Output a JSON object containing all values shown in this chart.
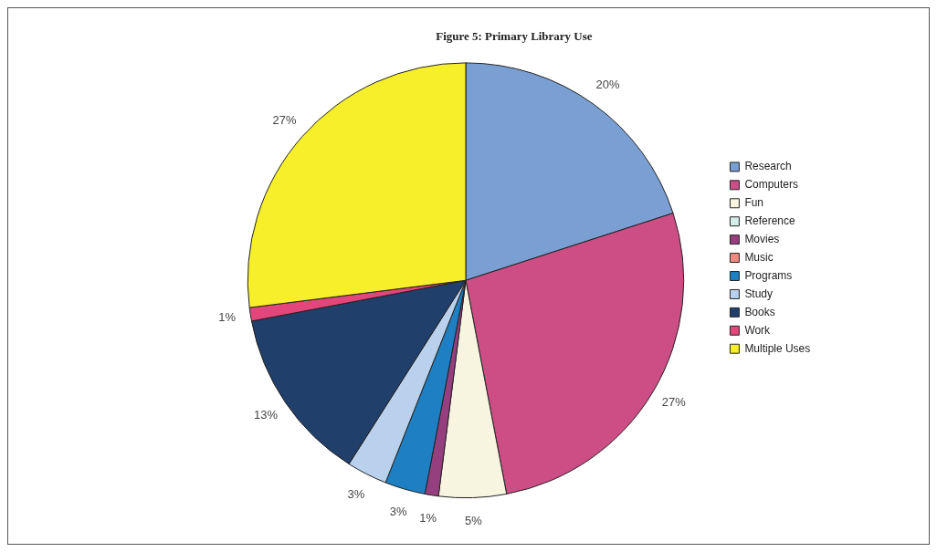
{
  "chart_data": {
    "type": "pie",
    "title": "Figure 5: Primary Library Use",
    "categories": [
      "Research",
      "Computers",
      "Fun",
      "Reference",
      "Movies",
      "Music",
      "Programs",
      "Study",
      "Books",
      "Work",
      "Multiple Uses"
    ],
    "values": [
      20,
      27,
      5,
      0,
      1,
      0,
      3,
      3,
      13,
      1,
      27
    ],
    "value_labels": [
      "20%",
      "27%",
      "5%",
      null,
      "1%",
      null,
      "3%",
      "3%",
      "13%",
      "1%",
      "27%"
    ],
    "colors": [
      "#7a9fd2",
      "#cc4e85",
      "#f7f4e0",
      "#d4ece8",
      "#963f7e",
      "#f08a80",
      "#1e7fc2",
      "#b9d1ec",
      "#203f6b",
      "#e2467a",
      "#f7ef2a"
    ],
    "legend": "right"
  }
}
